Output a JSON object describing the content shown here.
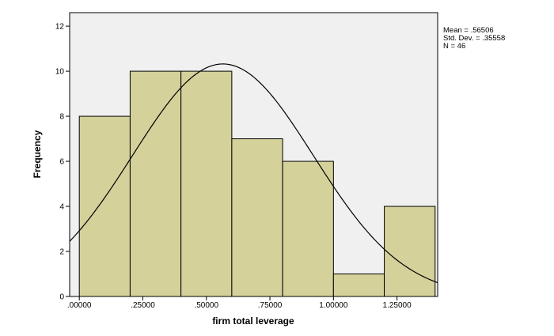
{
  "chart_data": {
    "type": "bar",
    "subtype": "histogram",
    "xlabel": "firm total leverage",
    "ylabel": "Frequency",
    "xlim": [
      -0.038,
      1.41
    ],
    "ylim": [
      0,
      12.6
    ],
    "x_ticks": [
      {
        "value": 0.0,
        "label": ".00000"
      },
      {
        "value": 0.25,
        "label": ".25000"
      },
      {
        "value": 0.5,
        "label": ".50000"
      },
      {
        "value": 0.75,
        "label": ".75000"
      },
      {
        "value": 1.0,
        "label": "1.00000"
      },
      {
        "value": 1.25,
        "label": "1.25000"
      }
    ],
    "y_ticks": [
      0,
      2,
      4,
      6,
      8,
      10,
      12
    ],
    "bins": [
      {
        "start": 0.0,
        "end": 0.2,
        "count": 8
      },
      {
        "start": 0.2,
        "end": 0.4,
        "count": 10
      },
      {
        "start": 0.4,
        "end": 0.6,
        "count": 10
      },
      {
        "start": 0.6,
        "end": 0.8,
        "count": 7
      },
      {
        "start": 0.8,
        "end": 1.0,
        "count": 6
      },
      {
        "start": 1.0,
        "end": 1.2,
        "count": 1
      },
      {
        "start": 1.2,
        "end": 1.4,
        "count": 4
      }
    ],
    "normal_curve": {
      "mean": 0.56506,
      "std_dev": 0.35558,
      "n": 46,
      "bin_width": 0.2
    },
    "stats_box": {
      "mean": "Mean = .56506",
      "std_dev": "Std. Dev. = .35558",
      "n": "N = 46"
    },
    "grid": false,
    "colors": {
      "bar_fill": "#d4d19a",
      "bar_stroke": "#000000",
      "plot_background": "#f0f0f0",
      "curve": "#000000"
    }
  }
}
